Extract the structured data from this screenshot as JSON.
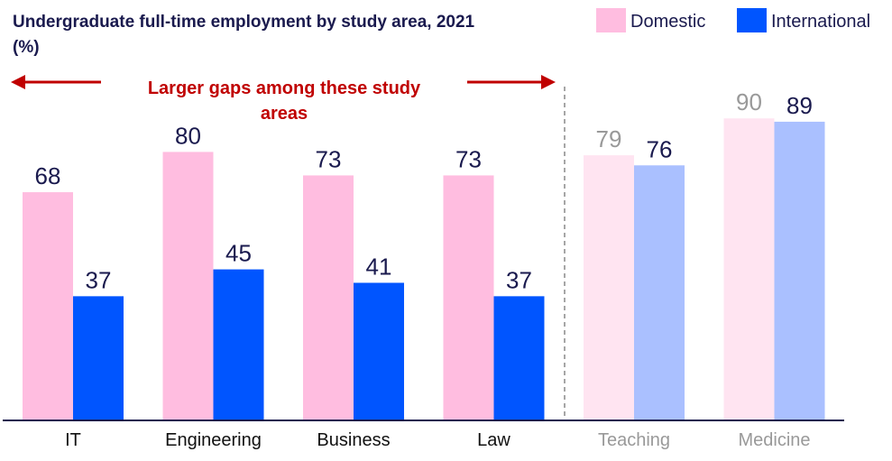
{
  "chart_data": {
    "type": "bar",
    "title": [
      "Undergraduate full-time employment by study area, 2021",
      "(%)"
    ],
    "categories": [
      "IT",
      "Engineering",
      "Business",
      "Law",
      "Teaching",
      "Medicine"
    ],
    "series": [
      {
        "name": "Domestic",
        "values": [
          68,
          80,
          73,
          73,
          79,
          90
        ]
      },
      {
        "name": "International",
        "values": [
          37,
          45,
          41,
          37,
          76,
          89
        ]
      }
    ],
    "muted_categories": [
      "Teaching",
      "Medicine"
    ],
    "annotation": [
      "Larger gaps among these study",
      "areas"
    ],
    "ylim": [
      0,
      100
    ],
    "grid": false,
    "legend_position": "top-right"
  },
  "colors": {
    "domestic": "#ffbde0",
    "international": "#0055ff",
    "domestic_muted": "#ffe4f1",
    "international_muted": "#aac0ff",
    "label_dark": "#1a1a4e",
    "label_muted": "#999999",
    "annotation": "#c00000",
    "divider": "#888888",
    "axis": "#1a1a4e"
  }
}
